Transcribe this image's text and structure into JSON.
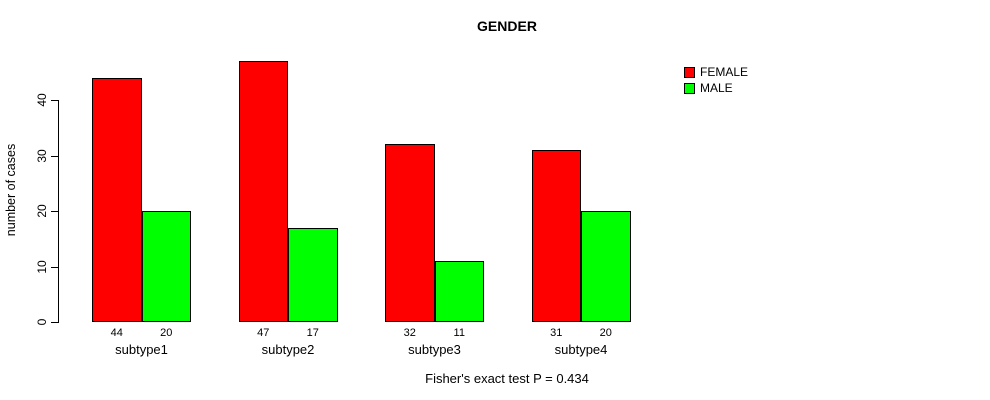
{
  "chart_data": {
    "type": "bar",
    "title": "GENDER",
    "ylabel": "number of cases",
    "xlabel": "",
    "categories": [
      "subtype1",
      "subtype2",
      "subtype3",
      "subtype4"
    ],
    "series": [
      {
        "name": "FEMALE",
        "color": "#ff0000",
        "values": [
          44,
          47,
          32,
          31
        ]
      },
      {
        "name": "MALE",
        "color": "#00ff00",
        "values": [
          20,
          17,
          11,
          20
        ]
      }
    ],
    "value_labels": [
      [
        44,
        20
      ],
      [
        47,
        17
      ],
      [
        32,
        11
      ],
      [
        31,
        20
      ]
    ],
    "yticks": [
      0,
      10,
      20,
      30,
      40
    ],
    "ylim": [
      0,
      47
    ],
    "grid": false,
    "legend_position": "top-right",
    "bar_border_color": "#000000",
    "background_color": "#ffffff",
    "footnote": "Fisher's exact test P = 0.434"
  }
}
